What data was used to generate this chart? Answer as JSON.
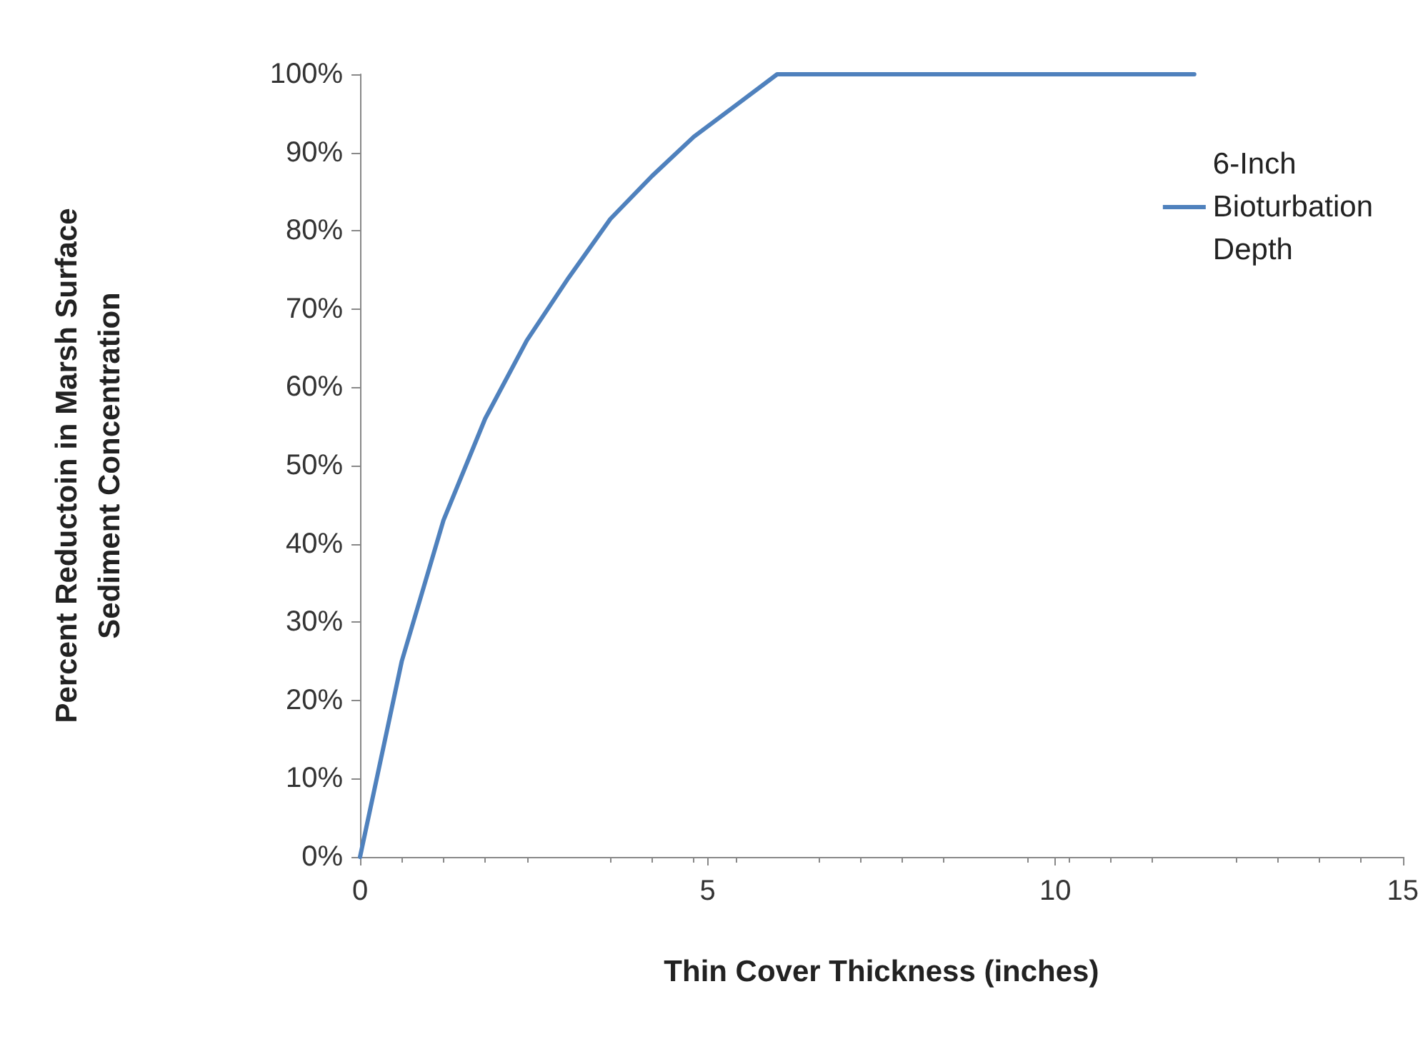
{
  "chart_data": {
    "type": "line",
    "xlabel": "Thin Cover Thickness (inches)",
    "ylabel": "Percent Reductoin in Marsh Surface\nSediment Concentration",
    "x": [
      0,
      0.6,
      1.2,
      1.8,
      2.4,
      3,
      3.6,
      4.2,
      4.8,
      5.4,
      6,
      12
    ],
    "series": [
      {
        "name": "6-Inch Bioturbation Depth",
        "color": "#4f81bd",
        "values": [
          0,
          25,
          43,
          56,
          66,
          74,
          81.5,
          87,
          92,
          96,
          100,
          100
        ]
      }
    ],
    "xlim": [
      0,
      15
    ],
    "xticks": [
      0,
      5,
      10,
      15
    ],
    "ylim": [
      0,
      100
    ],
    "yticks": [
      {
        "value": 0,
        "label": "0%"
      },
      {
        "value": 10,
        "label": "10%"
      },
      {
        "value": 20,
        "label": "20%"
      },
      {
        "value": 30,
        "label": "30%"
      },
      {
        "value": 40,
        "label": "40%"
      },
      {
        "value": 50,
        "label": "50%"
      },
      {
        "value": 60,
        "label": "60%"
      },
      {
        "value": 70,
        "label": "70%"
      },
      {
        "value": 80,
        "label": "80%"
      },
      {
        "value": 90,
        "label": "90%"
      },
      {
        "value": 100,
        "label": "100%"
      }
    ],
    "grid": false,
    "legend": "top right",
    "marker": "none",
    "line_style": "solid"
  }
}
